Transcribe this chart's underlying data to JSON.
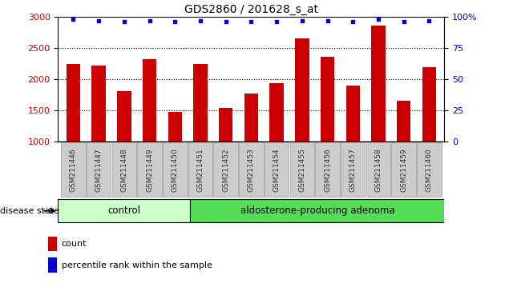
{
  "title": "GDS2860 / 201628_s_at",
  "samples": [
    "GSM211446",
    "GSM211447",
    "GSM211448",
    "GSM211449",
    "GSM211450",
    "GSM211451",
    "GSM211452",
    "GSM211453",
    "GSM211454",
    "GSM211455",
    "GSM211456",
    "GSM211457",
    "GSM211458",
    "GSM211459",
    "GSM211460"
  ],
  "counts": [
    2250,
    2215,
    1810,
    2320,
    1475,
    2245,
    1545,
    1770,
    1940,
    2650,
    2360,
    1900,
    2860,
    1660,
    2195
  ],
  "percentiles": [
    98,
    97,
    96,
    97,
    96,
    97,
    96,
    96,
    96,
    97,
    97,
    96,
    98,
    96,
    97
  ],
  "ylim_left": [
    1000,
    3000
  ],
  "ylim_right": [
    0,
    100
  ],
  "yticks_left": [
    1000,
    1500,
    2000,
    2500,
    3000
  ],
  "yticks_right": [
    0,
    25,
    50,
    75,
    100
  ],
  "bar_color": "#cc0000",
  "dot_color": "#0000cc",
  "n_control": 5,
  "control_label": "control",
  "adenoma_label": "aldosterone-producing adenoma",
  "disease_state_label": "disease state",
  "legend_count_label": "count",
  "legend_percentile_label": "percentile rank within the sample",
  "control_color": "#ccffcc",
  "adenoma_color": "#55dd55",
  "left_axis_color": "#cc0000",
  "right_axis_color": "#0000cc",
  "tick_box_color": "#cccccc",
  "tick_box_edge": "#999999"
}
